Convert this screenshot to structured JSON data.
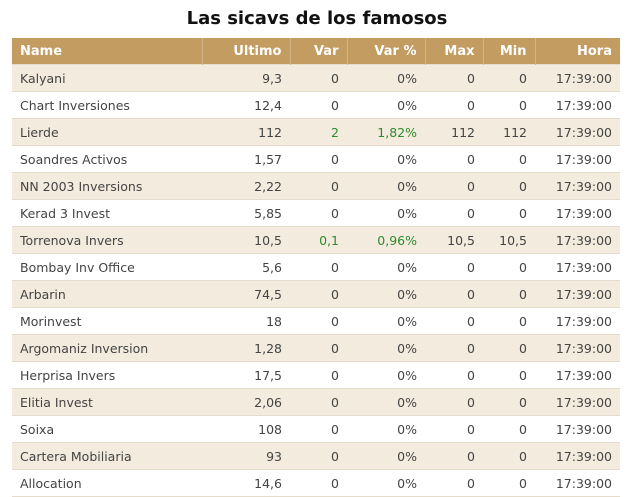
{
  "title": "Las sicavs de los famosos",
  "colors": {
    "header_bg": "#c39c62",
    "row_alt": "#f3ebdd",
    "positive": "#2e8b2e"
  },
  "columns": [
    "Name",
    "Ultimo",
    "Var",
    "Var %",
    "Max",
    "Min",
    "Hora"
  ],
  "rows": [
    {
      "name": "Kalyani",
      "ultimo": "9,3",
      "var": "0",
      "var_pct": "0%",
      "max": "0",
      "min": "0",
      "hora": "17:39:00"
    },
    {
      "name": "Chart Inversiones",
      "ultimo": "12,4",
      "var": "0",
      "var_pct": "0%",
      "max": "0",
      "min": "0",
      "hora": "17:39:00"
    },
    {
      "name": "Lierde",
      "ultimo": "112",
      "var": "2",
      "var_pct": "1,82%",
      "max": "112",
      "min": "112",
      "hora": "17:39:00",
      "positive": true
    },
    {
      "name": "Soandres Activos",
      "ultimo": "1,57",
      "var": "0",
      "var_pct": "0%",
      "max": "0",
      "min": "0",
      "hora": "17:39:00"
    },
    {
      "name": "NN 2003 Inversions",
      "ultimo": "2,22",
      "var": "0",
      "var_pct": "0%",
      "max": "0",
      "min": "0",
      "hora": "17:39:00"
    },
    {
      "name": "Kerad 3 Invest",
      "ultimo": "5,85",
      "var": "0",
      "var_pct": "0%",
      "max": "0",
      "min": "0",
      "hora": "17:39:00"
    },
    {
      "name": "Torrenova Invers",
      "ultimo": "10,5",
      "var": "0,1",
      "var_pct": "0,96%",
      "max": "10,5",
      "min": "10,5",
      "hora": "17:39:00",
      "positive": true
    },
    {
      "name": "Bombay Inv Office",
      "ultimo": "5,6",
      "var": "0",
      "var_pct": "0%",
      "max": "0",
      "min": "0",
      "hora": "17:39:00"
    },
    {
      "name": "Arbarin",
      "ultimo": "74,5",
      "var": "0",
      "var_pct": "0%",
      "max": "0",
      "min": "0",
      "hora": "17:39:00"
    },
    {
      "name": "Morinvest",
      "ultimo": "18",
      "var": "0",
      "var_pct": "0%",
      "max": "0",
      "min": "0",
      "hora": "17:39:00"
    },
    {
      "name": "Argomaniz Inversion",
      "ultimo": "1,28",
      "var": "0",
      "var_pct": "0%",
      "max": "0",
      "min": "0",
      "hora": "17:39:00"
    },
    {
      "name": "Herprisa Invers",
      "ultimo": "17,5",
      "var": "0",
      "var_pct": "0%",
      "max": "0",
      "min": "0",
      "hora": "17:39:00"
    },
    {
      "name": "Elitia Invest",
      "ultimo": "2,06",
      "var": "0",
      "var_pct": "0%",
      "max": "0",
      "min": "0",
      "hora": "17:39:00"
    },
    {
      "name": "Soixa",
      "ultimo": "108",
      "var": "0",
      "var_pct": "0%",
      "max": "0",
      "min": "0",
      "hora": "17:39:00"
    },
    {
      "name": "Cartera Mobiliaria",
      "ultimo": "93",
      "var": "0",
      "var_pct": "0%",
      "max": "0",
      "min": "0",
      "hora": "17:39:00"
    },
    {
      "name": "Allocation",
      "ultimo": "14,6",
      "var": "0",
      "var_pct": "0%",
      "max": "0",
      "min": "0",
      "hora": "17:39:00"
    }
  ]
}
